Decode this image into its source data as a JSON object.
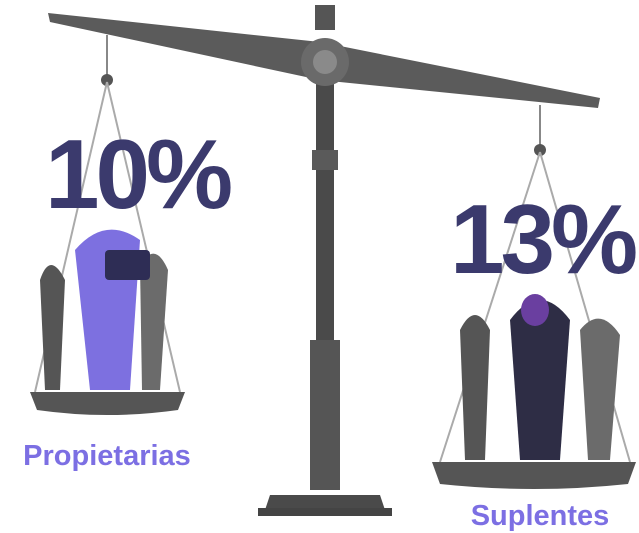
{
  "left": {
    "percent": "10%",
    "label": "Propietarias"
  },
  "right": {
    "percent": "13%",
    "label": "Suplentes"
  }
}
